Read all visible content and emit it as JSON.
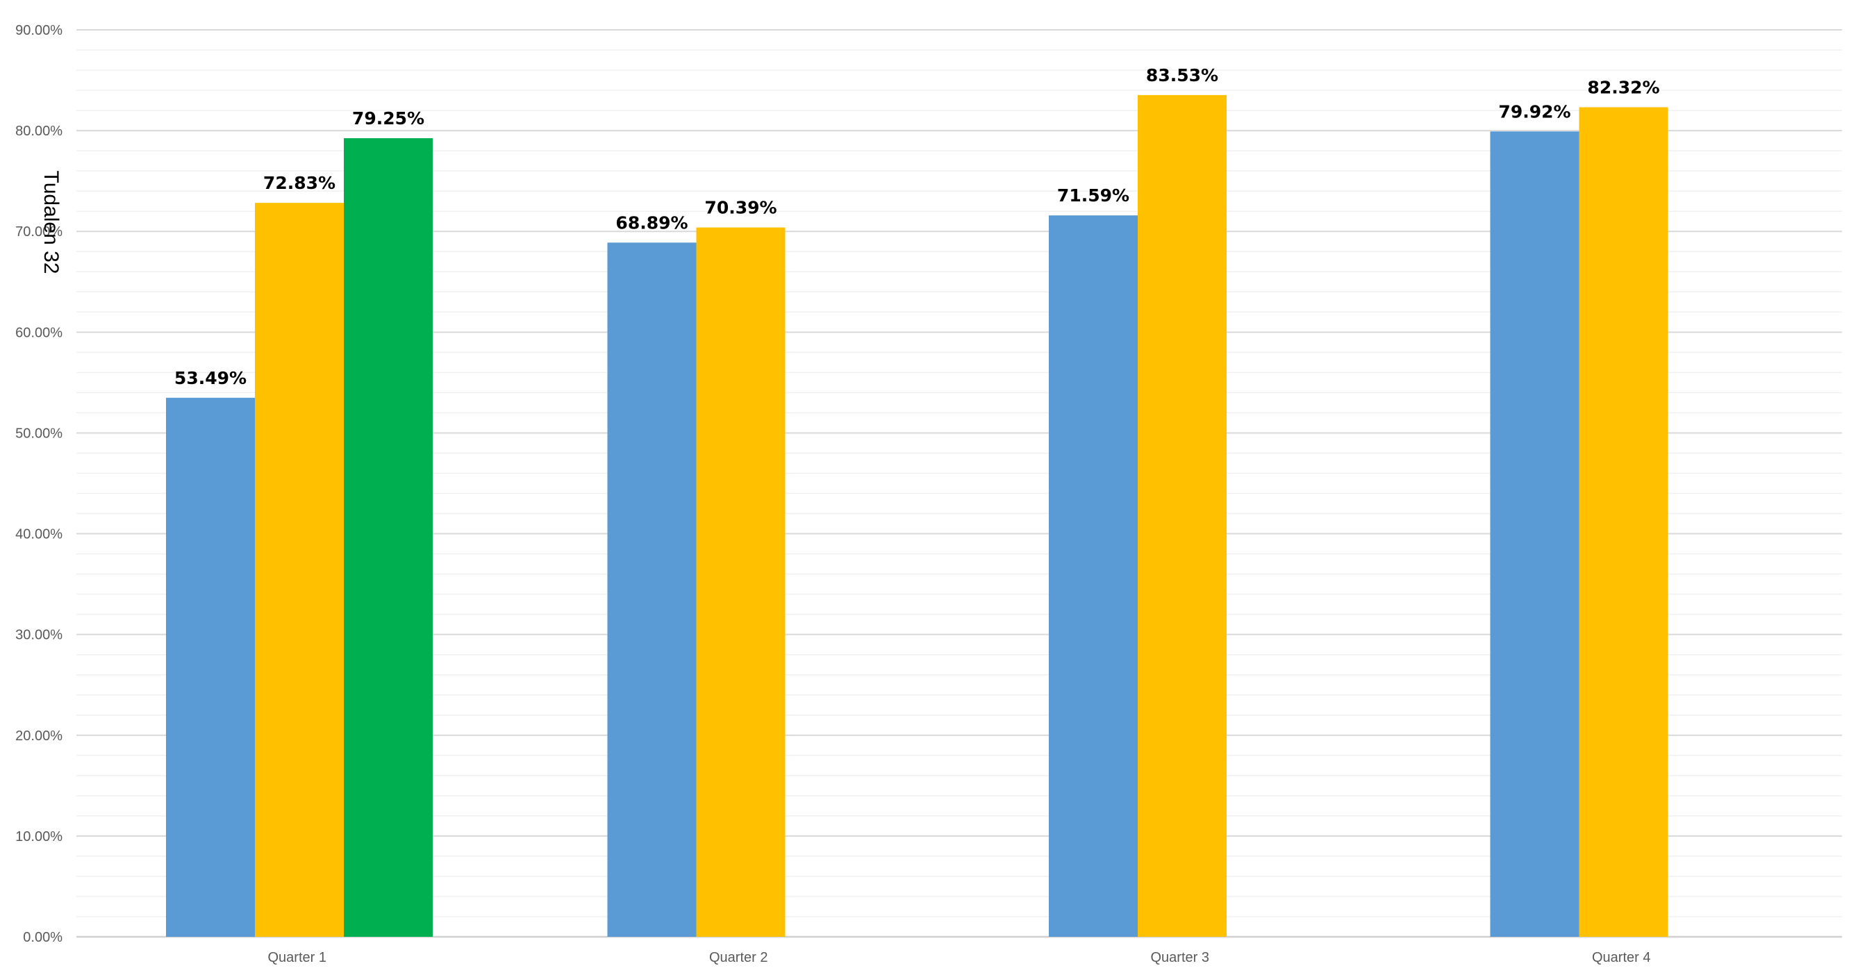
{
  "chart_data": {
    "type": "bar",
    "ylabel": "Tudalen 32",
    "xlabel": "",
    "categories": [
      "Quarter 1",
      "Quarter 2",
      "Quarter 3",
      "Quarter 4"
    ],
    "series": [
      {
        "color": "#5B9BD5",
        "values": [
          53.49,
          68.89,
          71.59,
          79.92
        ]
      },
      {
        "color": "#FFC000",
        "values": [
          72.83,
          70.39,
          83.53,
          82.32
        ]
      },
      {
        "color": "#00B050",
        "values": [
          79.25,
          null,
          null,
          null
        ]
      }
    ],
    "ylim": [
      0,
      90
    ],
    "y_ticks": [
      "0.00%",
      "10.00%",
      "20.00%",
      "30.00%",
      "40.00%",
      "50.00%",
      "60.00%",
      "70.00%",
      "80.00%",
      "90.00%"
    ],
    "data_labels": [
      [
        "53.49%",
        "68.89%",
        "71.59%",
        "79.92%"
      ],
      [
        "72.83%",
        "70.39%",
        "83.53%",
        "82.32%"
      ],
      [
        "79.25%",
        null,
        null,
        null
      ]
    ],
    "grid": true,
    "legend": "none"
  }
}
